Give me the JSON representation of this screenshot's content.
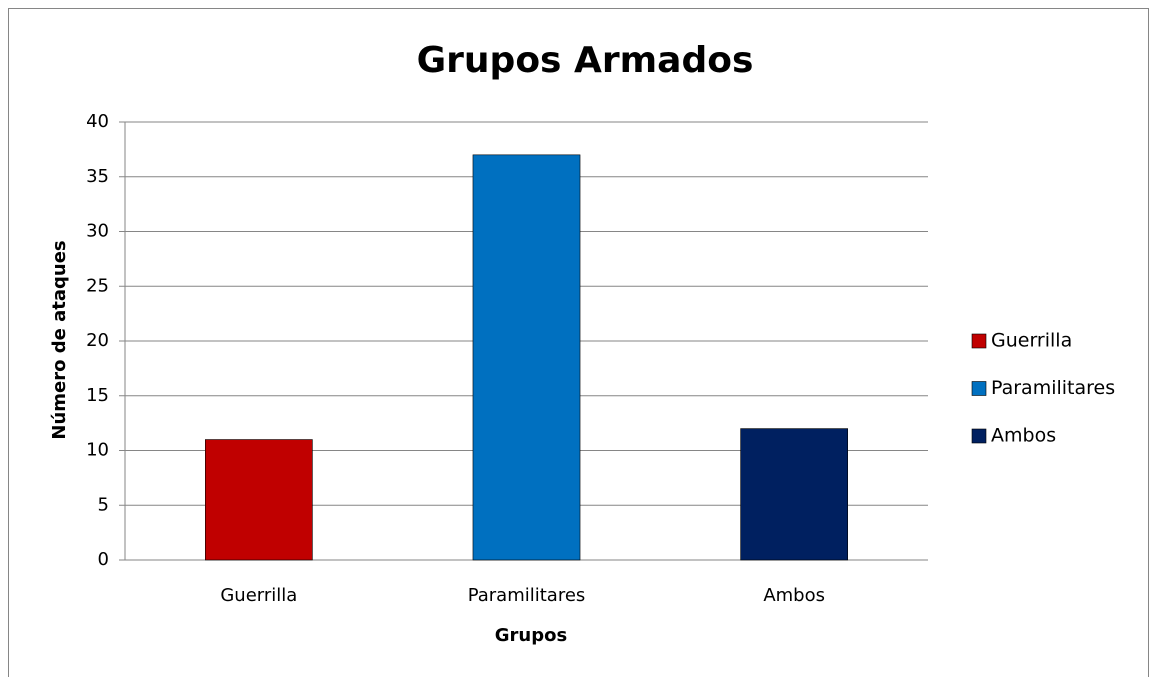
{
  "chart_data": {
    "type": "bar",
    "title": "Grupos Armados",
    "x_label": "Grupos",
    "y_label": "Número de ataques",
    "categories": [
      "Guerrilla",
      "Paramilitares",
      "Ambos"
    ],
    "values": [
      11,
      37,
      12
    ],
    "colors": [
      "#c00000",
      "#0070c0",
      "#002060"
    ],
    "ylim": [
      0,
      40
    ],
    "yticks": [
      0,
      5,
      10,
      15,
      20,
      25,
      30,
      35,
      40
    ],
    "grid": true,
    "legend": "right"
  }
}
